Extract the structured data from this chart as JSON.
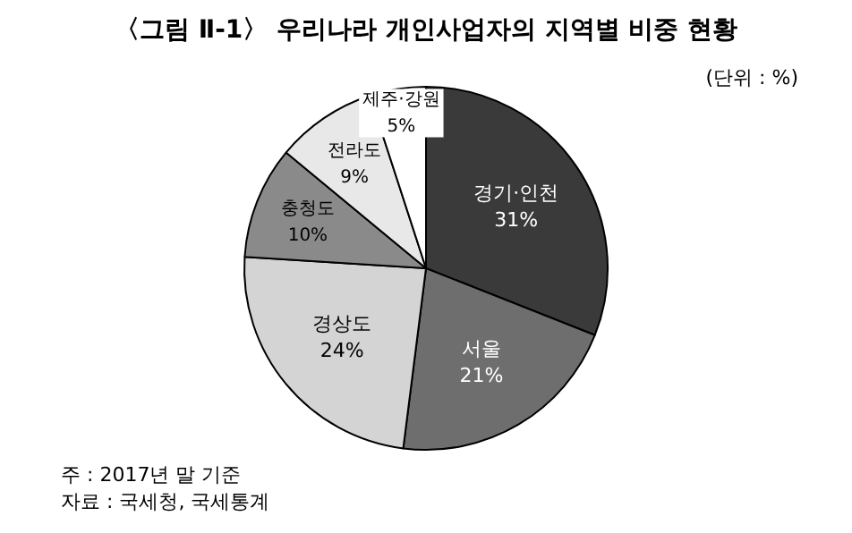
{
  "chart_data": {
    "type": "pie",
    "title": "〈그림 Ⅱ-1〉 우리나라 개인사업자의 지역별 비중 현황",
    "subtitle": "(단위 : %)",
    "categories": [
      "경기·인천",
      "서울",
      "경상도",
      "충청도",
      "전라도",
      "제주·강원"
    ],
    "values": [
      31,
      21,
      24,
      10,
      9,
      5
    ],
    "colors": [
      "#3a3a3a",
      "#6e6e6e",
      "#d4d4d4",
      "#8a8a8a",
      "#e8e8e8",
      "#ffffff"
    ],
    "data_labels": true,
    "value_labels": [
      "31%",
      "21%",
      "24%",
      "10%",
      "9%",
      "5%"
    ],
    "legend": false,
    "annotations": [
      "주 : 2017년 말 기준",
      "자료 : 국세청, 국세통계"
    ]
  }
}
